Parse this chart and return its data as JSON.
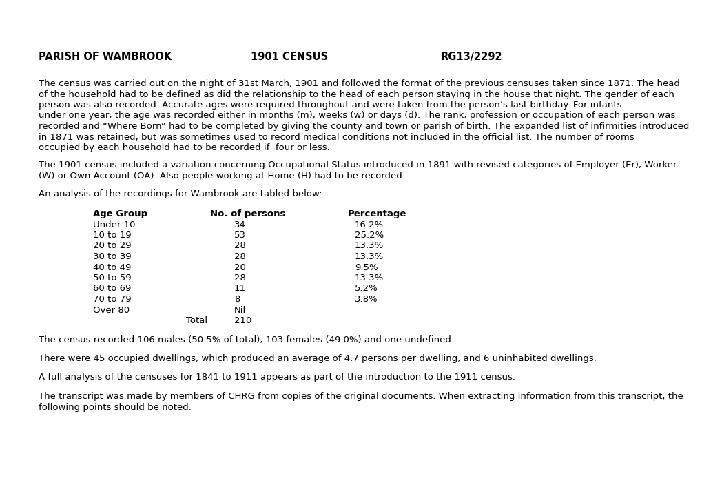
{
  "background_color": "#ffffff",
  "header_left": "PARISH OF WAMBROOK",
  "header_center": "1901 CENSUS",
  "header_right": "RG13/2292",
  "paragraph1": "The census was carried out on the night of 31st March, 1901 and followed the format of the previous censuses taken since 1871. The head\nof the household had to be defined as did the relationship to the head of each person staying in the house that night. The gender of each\nperson was also recorded. Accurate ages were required throughout and were taken from the person’s last birthday. For infants\nunder one year, the age was recorded either in months (m), weeks (w) or days (d). The rank, profession or occupation of each person was\nrecorded and “Where Born” had to be completed by giving the county and town or parish of birth. The expanded list of infirmities introduced\nin 1871 was retained, but was sometimes used to record medical conditions not included in the official list. The number of rooms\noccupied by each household had to be recorded if  four or less.",
  "paragraph2": "The 1901 census included a variation concerning Occupational Status introduced in 1891 with revised categories of Employer (Er), Worker\n(W) or Own Account (OA). Also people working at Home (H) had to be recorded.",
  "paragraph3": "An analysis of the recordings for Wambrook are tabled below:",
  "table_headers": [
    "Age Group",
    "No. of persons",
    "Percentage"
  ],
  "table_rows": [
    [
      "Under 10",
      "34",
      "16.2%"
    ],
    [
      "10 to 19",
      "53",
      "25.2%"
    ],
    [
      "20 to 29",
      "28",
      "13.3%"
    ],
    [
      "30 to 39",
      "28",
      "13.3%"
    ],
    [
      "40 to 49",
      "20",
      "9.5%"
    ],
    [
      "50 to 59",
      "28",
      "13.3%"
    ],
    [
      "60 to 69",
      "11",
      "5.2%"
    ],
    [
      "70 to 79",
      "8",
      "3.8%"
    ],
    [
      "Over 80",
      "Nil",
      ""
    ]
  ],
  "table_total_label": "Total",
  "table_total_value": "210",
  "paragraph4": "The census recorded 106 males (50.5% of total), 103 females (49.0%) and one undefined.",
  "paragraph5": "There were 45 occupied dwellings, which produced an average of 4.7 persons per dwelling, and 6 uninhabited dwellings.",
  "paragraph6": "A full analysis of the censuses for 1841 to 1911 appears as part of the introduction to the 1911 census.",
  "paragraph7": "The transcript was made by members of CHRG from copies of the original documents. When extracting information from this transcript, the\nfollowing points should be noted:"
}
